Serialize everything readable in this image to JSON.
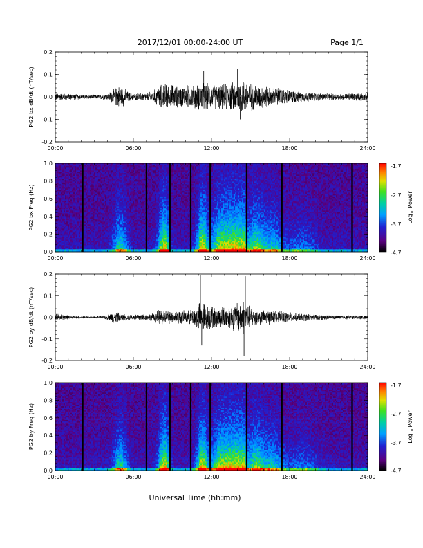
{
  "header": {
    "title": "2017/12/01  00:00-24:00 UT",
    "page": "Page 1/1"
  },
  "xlabel": "Universal Time (hh:mm)",
  "colorbar": {
    "label": "Log",
    "label_sub": "10",
    "label_suffix": " Power",
    "ticks": [
      "-1.7",
      "-2.7",
      "-3.7",
      "-4.7"
    ]
  },
  "chart_data": [
    {
      "type": "line",
      "ylabel": "PG2 bx dB/dt (nT/sec)",
      "xlim": [
        0,
        24
      ],
      "ylim": [
        -0.2,
        0.2
      ],
      "x_ticks": [
        "00:00",
        "06:00",
        "12:00",
        "18:00",
        "24:00"
      ],
      "y_ticks": [
        "0.2",
        "0.1",
        "0.0",
        "-0.1",
        "-0.2"
      ],
      "envelope": {
        "hours": [
          0,
          1,
          2,
          3,
          4,
          4.5,
          5,
          5.5,
          6,
          6.5,
          7,
          7.5,
          8,
          8.5,
          9,
          9.5,
          10,
          10.5,
          11,
          11.5,
          12,
          12.5,
          13,
          13.5,
          14,
          14.5,
          15,
          15.5,
          16,
          16.5,
          17,
          17.5,
          18,
          18.5,
          19,
          20,
          21,
          22,
          23,
          24
        ],
        "amplitude": [
          0.02,
          0.015,
          0.012,
          0.01,
          0.015,
          0.04,
          0.06,
          0.03,
          0.015,
          0.02,
          0.02,
          0.03,
          0.055,
          0.07,
          0.06,
          0.05,
          0.06,
          0.055,
          0.065,
          0.07,
          0.06,
          0.06,
          0.065,
          0.07,
          0.08,
          0.085,
          0.07,
          0.06,
          0.055,
          0.05,
          0.045,
          0.04,
          0.035,
          0.03,
          0.025,
          0.02,
          0.018,
          0.015,
          0.02,
          0.02
        ]
      },
      "spikes": [
        {
          "x": 11.4,
          "y": 0.115
        },
        {
          "x": 14.0,
          "y": 0.125
        },
        {
          "x": 14.2,
          "y": -0.1
        }
      ]
    },
    {
      "type": "heatmap",
      "ylabel": "PG2 bx Freq (Hz)",
      "xlim": [
        0,
        24
      ],
      "ylim": [
        0,
        1.0
      ],
      "x_ticks": [
        "00:00",
        "06:00",
        "12:00",
        "18:00",
        "24:00"
      ],
      "y_ticks": [
        "1.0",
        "0.8",
        "0.6",
        "0.4",
        "0.2",
        "0.0"
      ],
      "zlim": [
        -4.7,
        -1.7
      ],
      "gap_hours": [
        2.1,
        7.0,
        8.8,
        10.4,
        11.9,
        14.7,
        17.4,
        22.8
      ]
    },
    {
      "type": "line",
      "ylabel": "PG2 by dB/dt (nT/sec)",
      "xlim": [
        0,
        24
      ],
      "ylim": [
        -0.2,
        0.2
      ],
      "x_ticks": [
        "00:00",
        "06:00",
        "12:00",
        "18:00",
        "24:00"
      ],
      "y_ticks": [
        "0.2",
        "0.1",
        "0.0",
        "-0.1",
        "-0.2"
      ],
      "envelope": {
        "hours": [
          0,
          1,
          2,
          3,
          4,
          4.5,
          5,
          5.5,
          6,
          6.5,
          7,
          7.5,
          8,
          8.5,
          9,
          9.5,
          10,
          10.5,
          11,
          11.5,
          12,
          12.5,
          13,
          13.5,
          14,
          14.5,
          15,
          15.5,
          16,
          16.5,
          17,
          17.5,
          18,
          18.5,
          19,
          20,
          21,
          22,
          23,
          24
        ],
        "amplitude": [
          0.02,
          0.01,
          0.006,
          0.005,
          0.012,
          0.03,
          0.02,
          0.015,
          0.015,
          0.02,
          0.015,
          0.02,
          0.04,
          0.035,
          0.03,
          0.04,
          0.03,
          0.04,
          0.07,
          0.08,
          0.06,
          0.05,
          0.06,
          0.06,
          0.08,
          0.09,
          0.05,
          0.04,
          0.035,
          0.035,
          0.03,
          0.03,
          0.025,
          0.02,
          0.02,
          0.015,
          0.012,
          0.01,
          0.01,
          0.01
        ]
      },
      "spikes": [
        {
          "x": 11.15,
          "y": 0.195
        },
        {
          "x": 11.25,
          "y": -0.13
        },
        {
          "x": 14.6,
          "y": 0.19
        },
        {
          "x": 14.5,
          "y": -0.18
        }
      ]
    },
    {
      "type": "heatmap",
      "ylabel": "PG2 by Freq (Hz)",
      "xlim": [
        0,
        24
      ],
      "ylim": [
        0,
        1.0
      ],
      "x_ticks": [
        "00:00",
        "06:00",
        "12:00",
        "18:00",
        "24:00"
      ],
      "y_ticks": [
        "1.0",
        "0.8",
        "0.6",
        "0.4",
        "0.2",
        "0.0"
      ],
      "zlim": [
        -4.7,
        -1.7
      ],
      "gap_hours": [
        2.1,
        7.0,
        8.8,
        10.4,
        11.9,
        14.7,
        17.4,
        22.8
      ]
    }
  ]
}
